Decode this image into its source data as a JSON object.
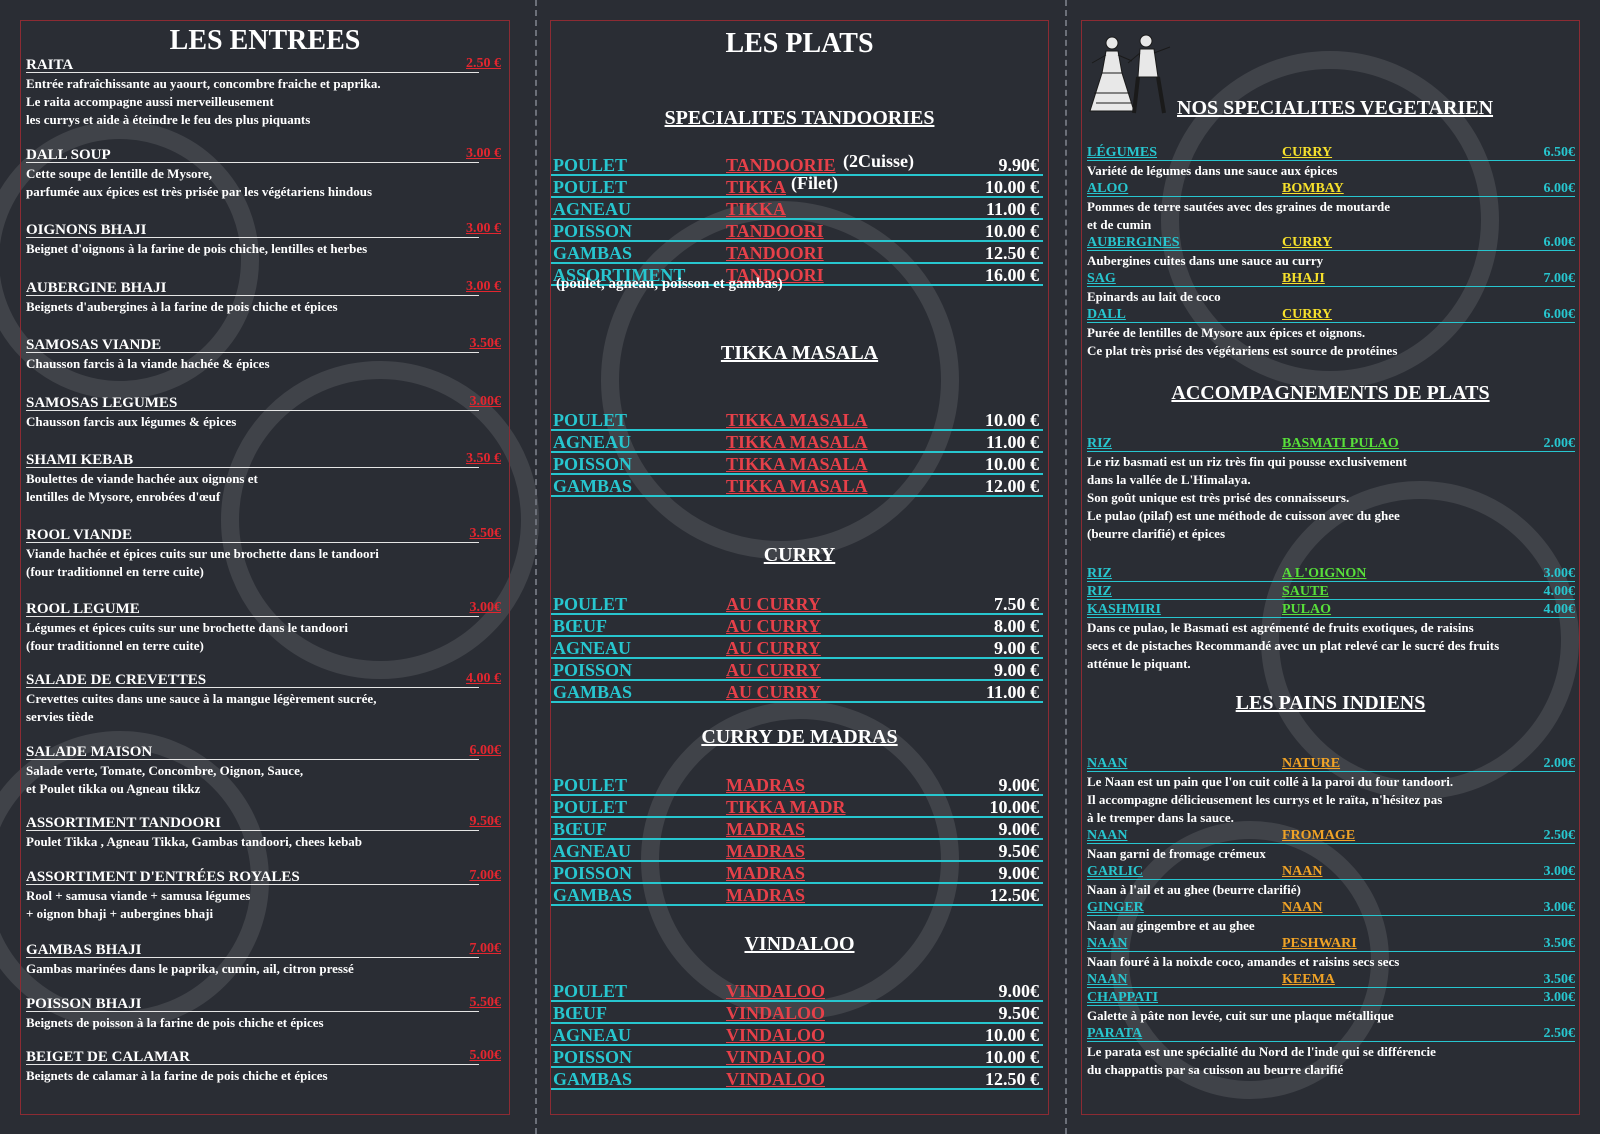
{
  "entrees": {
    "title": "LES ENTREES",
    "items": [
      {
        "name": "RAITA",
        "price": "2.50 €",
        "desc": [
          "Entrée rafraîchissante au yaourt, concombre fraiche et paprika.",
          "Le raita accompagne aussi merveilleusement",
          "les currys et aide à éteindre le feu des plus piquants"
        ]
      },
      {
        "name": "DALL SOUP",
        "price": "3.00 €",
        "desc": [
          "Cette soupe de lentille de Mysore,",
          "parfumée aux épices est très prisée par les végétariens hindous"
        ]
      },
      {
        "name": "OIGNONS BHAJI",
        "price": "3.00 €",
        "desc": [
          "Beignet d'oignons à la farine de pois chiche, lentilles et herbes"
        ]
      },
      {
        "name": "AUBERGINE BHAJI",
        "price": "3.00 €",
        "desc": [
          "Beignets d'aubergines à la farine de pois chiche et épices"
        ]
      },
      {
        "name": "SAMOSAS VIANDE",
        "price": "3.50€",
        "desc": [
          "Chausson farcis à la viande hachée & épices"
        ]
      },
      {
        "name": "SAMOSAS LEGUMES",
        "price": "3.00€",
        "desc": [
          "Chausson farcis aux légumes & épices"
        ]
      },
      {
        "name": "SHAMI KEBAB",
        "price": "3.50 €",
        "desc": [
          "Boulettes de viande hachée aux oignons et",
          "lentilles de Mysore, enrobées d'œuf"
        ]
      },
      {
        "name": "ROOL VIANDE",
        "price": "3.50€",
        "desc": [
          "Viande hachée et épices cuits sur une brochette dans le tandoori",
          "(four traditionnel en terre cuite)"
        ]
      },
      {
        "name": "ROOL LEGUME",
        "price": "3.00€",
        "desc": [
          "Légumes et épices cuits sur une brochette dans le tandoori",
          "(four traditionnel en terre cuite)"
        ]
      },
      {
        "name": "SALADE DE CREVETTES",
        "price": "4.00 €",
        "desc": [
          "Crevettes cuites dans une sauce à la mangue légèrement sucrée,",
          "servies tiède"
        ]
      },
      {
        "name": "SALADE MAISON",
        "price": "6.00€",
        "desc": [
          "Salade verte, Tomate, Concombre, Oignon, Sauce,",
          "et Poulet tikka ou Agneau tikkz"
        ]
      },
      {
        "name": "ASSORTIMENT TANDOORI",
        "price": "9.50€",
        "desc": [
          "Poulet Tikka , Agneau Tikka, Gambas tandoori, chees kebab"
        ]
      },
      {
        "name": "ASSORTIMENT D'ENTRÉES ROYALES",
        "price": "7.00€",
        "desc": [
          "Rool + samusa viande + samusa légumes",
          "+ oignon bhaji + aubergines bhaji"
        ]
      },
      {
        "name": "GAMBAS BHAJI",
        "price": "7.00€",
        "desc": [
          "Gambas marinées dans le paprika, cumin, ail, citron pressé"
        ]
      },
      {
        "name": "POISSON BHAJI",
        "price": "5.50€",
        "desc": [
          "Beignets de poisson à la farine de pois chiche et épices"
        ]
      },
      {
        "name": "BEIGET DE CALAMAR",
        "price": "5.00€",
        "desc": [
          "Beignets de calamar à la farine de pois chiche et épices"
        ]
      }
    ]
  },
  "plats": {
    "title": "LES PLATS",
    "sections": [
      {
        "title": "SPECIALITES TANDOORIES",
        "rows": [
          {
            "a": "POULET",
            "b": "TANDOORIE",
            "note": "(2Cuisse)",
            "c": "9.90€"
          },
          {
            "a": "POULET",
            "b": "TIKKA",
            "note": "(Filet)",
            "c": "10.00 €"
          },
          {
            "a": "AGNEAU",
            "b": "TIKKA",
            "c": "11.00 €"
          },
          {
            "a": "POISSON",
            "b": "TANDOORI",
            "c": "10.00 €"
          },
          {
            "a": "GAMBAS",
            "b": "TANDOORI",
            "c": "12.50 €"
          },
          {
            "a": "ASSORTIMENT",
            "b": "TANDOORI",
            "c": "16.00 €"
          }
        ],
        "footnote": "(poulet, agneau, poisson et gambas)"
      },
      {
        "title": "TIKKA MASALA",
        "rows": [
          {
            "a": "POULET",
            "b": "TIKKA MASALA",
            "c": "10.00 €"
          },
          {
            "a": "AGNEAU",
            "b": "TIKKA MASALA",
            "c": "11.00 €"
          },
          {
            "a": "POISSON",
            "b": "TIKKA MASALA",
            "c": "10.00 €"
          },
          {
            "a": "GAMBAS",
            "b": "TIKKA MASALA",
            "c": "12.00 €"
          }
        ]
      },
      {
        "title": "CURRY",
        "rows": [
          {
            "a": "POULET",
            "b": "AU CURRY",
            "c": "7.50 €"
          },
          {
            "a": "BŒUF",
            "b": "AU CURRY",
            "c": "8.00 €"
          },
          {
            "a": "AGNEAU",
            "b": "AU CURRY",
            "c": "9.00 €"
          },
          {
            "a": "POISSON",
            "b": "AU CURRY",
            "c": "9.00 €"
          },
          {
            "a": "GAMBAS",
            "b": "AU CURRY",
            "c": "11.00 €"
          }
        ]
      },
      {
        "title": "CURRY DE MADRAS",
        "rows": [
          {
            "a": "POULET",
            "b": "MADRAS",
            "c": "9.00€"
          },
          {
            "a": "POULET",
            "b": "TIKKA MADR",
            "c": "10.00€"
          },
          {
            "a": "BŒUF",
            "b": "MADRAS",
            "c": "9.00€"
          },
          {
            "a": "AGNEAU",
            "b": "MADRAS",
            "c": "9.50€"
          },
          {
            "a": "POISSON",
            "b": "MADRAS",
            "c": "9.00€"
          },
          {
            "a": "GAMBAS",
            "b": "MADRAS",
            "c": "12.50€"
          }
        ]
      },
      {
        "title": "VINDALOO",
        "rows": [
          {
            "a": "POULET",
            "b": "VINDALOO",
            "c": "9.00€"
          },
          {
            "a": "BŒUF",
            "b": "VINDALOO",
            "c": "9.50€"
          },
          {
            "a": "AGNEAU",
            "b": "VINDALOO",
            "c": "10.00 €"
          },
          {
            "a": "POISSON",
            "b": "VINDALOO",
            "c": "10.00 €"
          },
          {
            "a": "GAMBAS",
            "b": "VINDALOO",
            "c": "12.50 €"
          }
        ]
      }
    ]
  },
  "vegetarien": {
    "title": "NOS SPECIALITES VEGETARIEN",
    "items": [
      {
        "a": "LÉGUMES",
        "b": "CURRY",
        "c": "6.50€",
        "desc": [
          "Variété de légumes dans une sauce aux épices"
        ]
      },
      {
        "a": "ALOO",
        "b": "BOMBAY",
        "c": "6.00€",
        "desc": [
          "Pommes de terre sautées avec des graines de moutarde",
          "et de cumin"
        ]
      },
      {
        "a": "AUBERGINES",
        "b": "CURRY",
        "c": "6.00€",
        "desc": [
          "Aubergines cuites dans une sauce au curry"
        ]
      },
      {
        "a": "SAG",
        "b": "BHAJI",
        "c": "7.00€",
        "desc": [
          "Epinards au lait de coco"
        ]
      },
      {
        "a": "DALL",
        "b": "CURRY",
        "c": "6.00€",
        "desc": [
          "Purée de lentilles de Mysore aux épices et oignons.",
          "Ce plat très prisé des végétariens est source de protéines"
        ]
      }
    ]
  },
  "accompagnements": {
    "title": "ACCOMPAGNEMENTS DE PLATS",
    "items": [
      {
        "a": "RIZ",
        "b": "BASMATI PULAO",
        "c": "2.00€",
        "desc": [
          "Le riz basmati est un riz très fin qui pousse exclusivement",
          "dans la vallée de L'Himalaya.",
          "Son goût unique est très prisé des connaisseurs.",
          "Le pulao (pilaf) est une méthode de cuisson avec du ghee",
          "(beurre clarifié) et épices"
        ]
      },
      {
        "a": "RIZ",
        "b": "A L'OIGNON",
        "c": "3.00€",
        "desc": []
      },
      {
        "a": "RIZ",
        "b": "SAUTE",
        "c": "4.00€",
        "desc": []
      },
      {
        "a": "KASHMIRI",
        "b": "PULAO",
        "c": "4.00€",
        "desc": [
          "Dans ce pulao, le Basmati est agrémenté de fruits exotiques, de raisins",
          "secs et de pistaches Recommandé avec un plat relevé car le sucré des fruits",
          "atténue le piquant."
        ]
      }
    ]
  },
  "pains": {
    "title": "LES PAINS INDIENS",
    "items": [
      {
        "a": "NAAN",
        "b": "NATURE",
        "c": "2.00€",
        "desc": [
          "Le Naan est un pain que l'on cuit collé à la paroi du four tandoori.",
          "Il accompagne délicieusement les currys et le raïta, n'hésitez pas",
          "à le tremper dans la sauce."
        ]
      },
      {
        "a": "NAAN",
        "b": "FROMAGE",
        "c": "2.50€",
        "desc": [
          "Naan garni de fromage crémeux"
        ]
      },
      {
        "a": "GARLIC",
        "b": "NAAN",
        "c": "3.00€",
        "desc": [
          "Naan à l'ail et au ghee (beurre clarifié)"
        ]
      },
      {
        "a": "GINGER",
        "b": "NAAN",
        "c": "3.00€",
        "desc": [
          "Naan au gingembre et au ghee"
        ]
      },
      {
        "a": "NAAN",
        "b": "PESHWARI",
        "c": "3.50€",
        "desc": [
          "Naan fouré à la noixde coco, amandes et raisins secs secs"
        ]
      },
      {
        "a": "NAAN",
        "b": "KEEMA",
        "c": "3.50€",
        "desc": []
      },
      {
        "a": "CHAPPATI",
        "b": "",
        "c": "3.00€",
        "desc": [
          "Galette à pâte non levée, cuit sur une plaque métallique"
        ]
      },
      {
        "a": "PARATA",
        "b": "",
        "c": "2.50€",
        "desc": [
          "Le parata est une spécialité du Nord de l'inde qui se différencie",
          "du chappattis par sa cuisson au beurre clarifié"
        ]
      }
    ]
  },
  "colors": {
    "accent_red": "#e3262f",
    "accent_cyan": "#27c6cf",
    "accent_yellow": "#f7e12c",
    "accent_green": "#58df3a",
    "accent_orange": "#f0a326",
    "background": "#2a2d34"
  },
  "icons": {
    "dancers": "dancing-couple-icon"
  }
}
